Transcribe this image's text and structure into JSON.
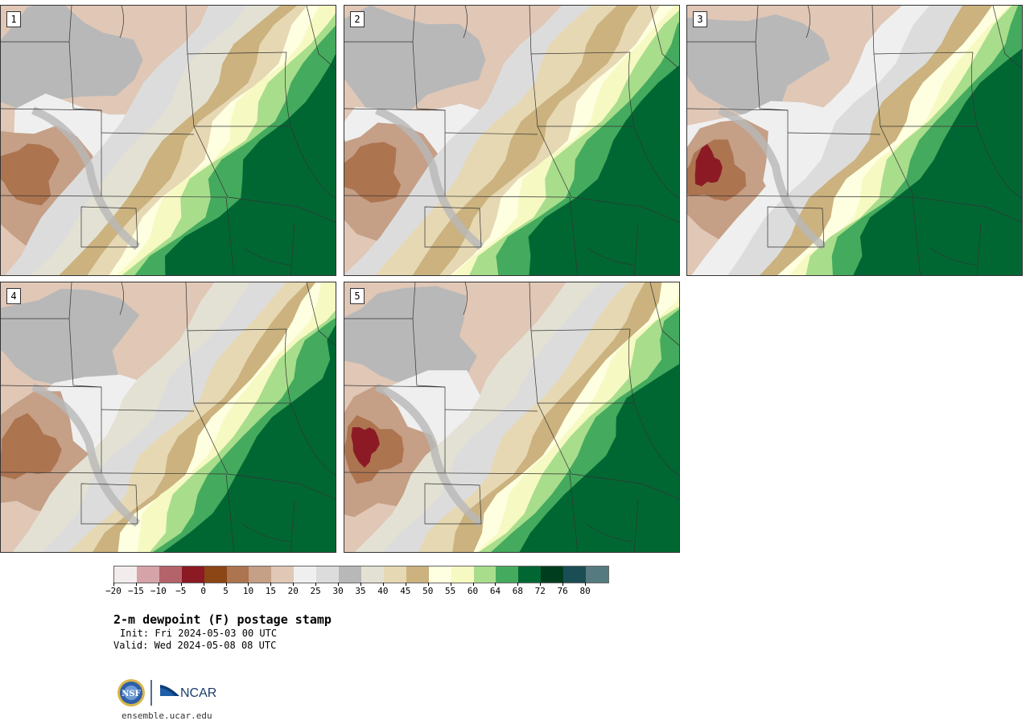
{
  "panels": [
    {
      "number": "1",
      "variant": 0
    },
    {
      "number": "2",
      "variant": 1
    },
    {
      "number": "3",
      "variant": 2
    },
    {
      "number": "4",
      "variant": 3
    },
    {
      "number": "5",
      "variant": 4
    }
  ],
  "colorbar": {
    "colors": [
      "#f3ecec",
      "#d5a3a8",
      "#b4636a",
      "#8c1a25",
      "#8c4514",
      "#ad7450",
      "#c59f86",
      "#e0c7b6",
      "#efefef",
      "#dcdcdc",
      "#b8b8b8",
      "#e3e1d3",
      "#e6d8b3",
      "#cbb27e",
      "#fefee0",
      "#f6f9c2",
      "#a8dd8c",
      "#44aa5e",
      "#006733",
      "#003d1f",
      "#1a4e54",
      "#557b80"
    ],
    "tick_labels": [
      "−20",
      "−15",
      "−10",
      "−5",
      "0",
      "5",
      "10",
      "15",
      "20",
      "25",
      "30",
      "35",
      "40",
      "45",
      "50",
      "55",
      "60",
      "64",
      "68",
      "72",
      "76",
      "80"
    ]
  },
  "title": "2-m dewpoint (F) postage stamp",
  "init_text": "Init: Fri 2024-05-03 00 UTC",
  "valid_text": "Valid: Wed 2024-05-08 08 UTC",
  "logo": {
    "nsf_text": "NSF",
    "ncar_text": "NCAR"
  },
  "website": "ensemble.ucar.edu"
}
